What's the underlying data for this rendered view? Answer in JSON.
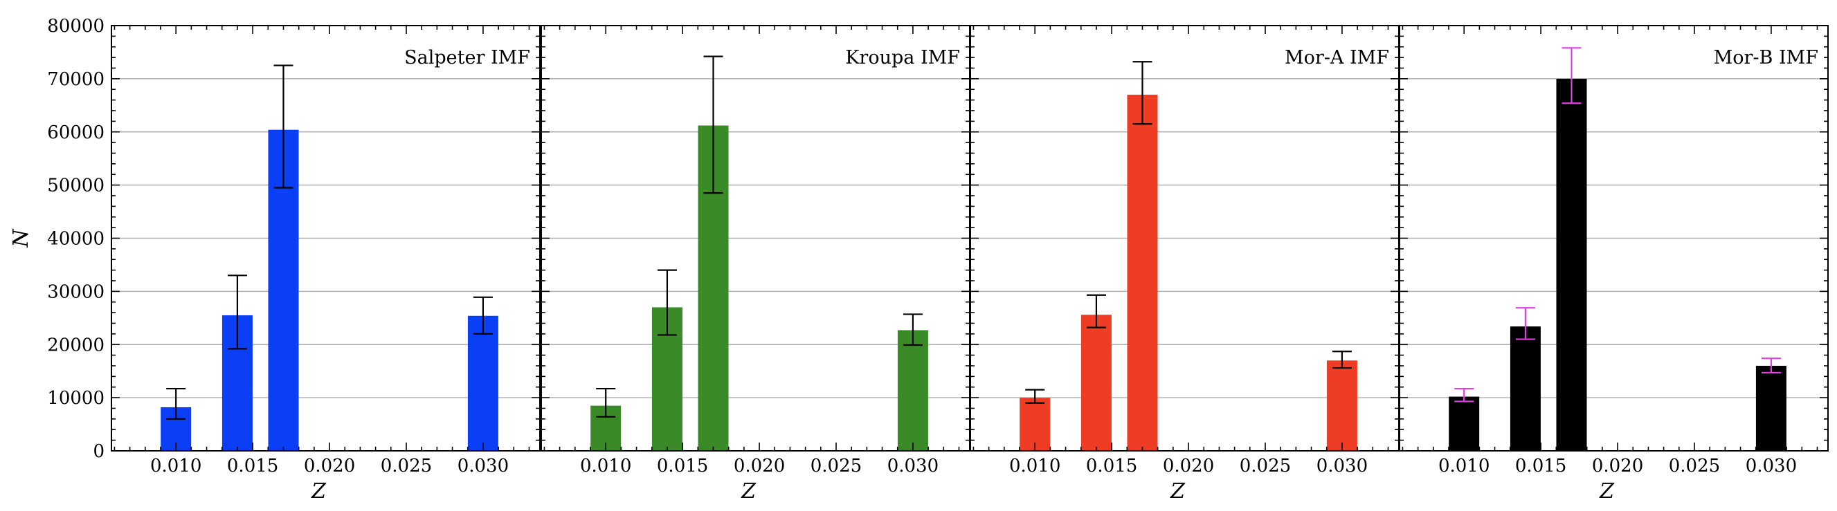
{
  "chart_data": [
    {
      "type": "bar",
      "title": "Salpeter IMF",
      "xlabel": "Z",
      "ylabel": "N",
      "xlim": [
        0.0058,
        0.0337
      ],
      "ylim": [
        0,
        80000
      ],
      "xticks": [
        0.01,
        0.015,
        0.02,
        0.025,
        0.03
      ],
      "xtick_labels": [
        "0.010",
        "0.015",
        "0.020",
        "0.025",
        "0.030"
      ],
      "yticks": [
        0,
        10000,
        20000,
        30000,
        40000,
        50000,
        60000,
        70000,
        80000
      ],
      "ytick_labels": [
        "0",
        "10000",
        "20000",
        "30000",
        "40000",
        "50000",
        "60000",
        "70000",
        "80000"
      ],
      "grid": "horizontal",
      "bar_color": "#0a3ff5",
      "error_color": "#000000",
      "x": [
        0.01,
        0.014,
        0.017,
        0.03
      ],
      "values": [
        8200,
        25500,
        60400,
        25400
      ],
      "err_low": [
        6000,
        19200,
        49500,
        22000
      ],
      "err_high": [
        11700,
        33000,
        72500,
        28900
      ]
    },
    {
      "type": "bar",
      "title": "Kroupa IMF",
      "xlabel": "Z",
      "ylabel": "N",
      "xlim": [
        0.0058,
        0.0337
      ],
      "ylim": [
        0,
        80000
      ],
      "xticks": [
        0.01,
        0.015,
        0.02,
        0.025,
        0.03
      ],
      "xtick_labels": [
        "0.010",
        "0.015",
        "0.020",
        "0.025",
        "0.030"
      ],
      "grid": "horizontal",
      "bar_color": "#3a8a27",
      "error_color": "#000000",
      "x": [
        0.01,
        0.014,
        0.017,
        0.03
      ],
      "values": [
        8500,
        27000,
        61200,
        22700
      ],
      "err_low": [
        6400,
        21800,
        48500,
        19900
      ],
      "err_high": [
        11700,
        34000,
        74200,
        25700
      ]
    },
    {
      "type": "bar",
      "title": "Mor-A IMF",
      "xlabel": "Z",
      "ylabel": "N",
      "xlim": [
        0.0058,
        0.0337
      ],
      "ylim": [
        0,
        80000
      ],
      "xticks": [
        0.01,
        0.015,
        0.02,
        0.025,
        0.03
      ],
      "xtick_labels": [
        "0.010",
        "0.015",
        "0.020",
        "0.025",
        "0.030"
      ],
      "grid": "horizontal",
      "bar_color": "#ef3d25",
      "error_color": "#000000",
      "x": [
        0.01,
        0.014,
        0.017,
        0.03
      ],
      "values": [
        10000,
        25600,
        67000,
        17000
      ],
      "err_low": [
        9000,
        23200,
        61500,
        15600
      ],
      "err_high": [
        11500,
        29300,
        73200,
        18700
      ]
    },
    {
      "type": "bar",
      "title": "Mor-B IMF",
      "xlabel": "Z",
      "ylabel": "N",
      "xlim": [
        0.0058,
        0.0337
      ],
      "ylim": [
        0,
        80000
      ],
      "xticks": [
        0.01,
        0.015,
        0.02,
        0.025,
        0.03
      ],
      "xtick_labels": [
        "0.010",
        "0.015",
        "0.020",
        "0.025",
        "0.030"
      ],
      "grid": "horizontal",
      "bar_color": "#000000",
      "error_color": "#e040e0",
      "x": [
        0.01,
        0.014,
        0.017,
        0.03
      ],
      "values": [
        10200,
        23400,
        70000,
        16000
      ],
      "err_low": [
        9300,
        21000,
        65400,
        14700
      ],
      "err_high": [
        11700,
        26900,
        75800,
        17400
      ]
    }
  ]
}
